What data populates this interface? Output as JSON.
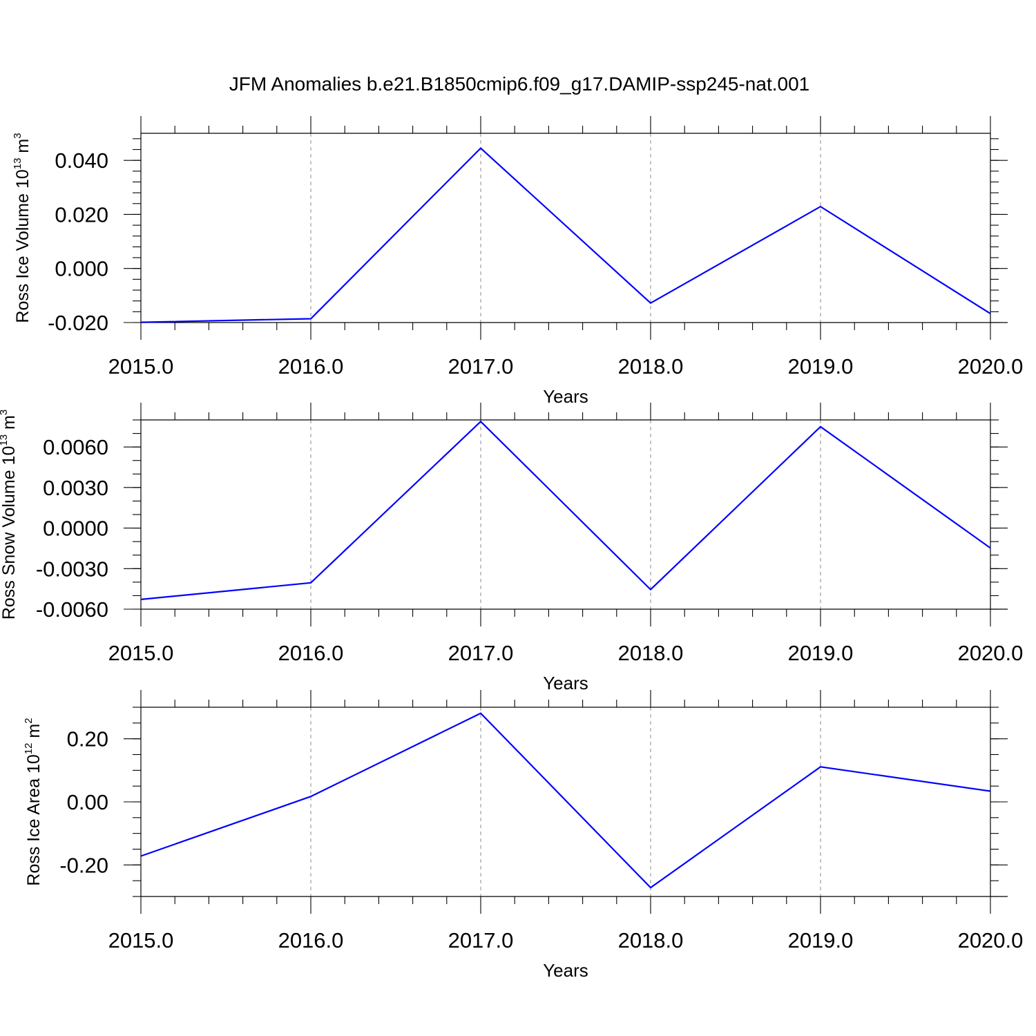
{
  "title": "JFM Anomalies b.e21.B1850cmip6.f09_g17.DAMIP-ssp245-nat.001",
  "colors": {
    "series": "#0000ff",
    "axes": "#000000",
    "grid": "#888888"
  },
  "chart_data": [
    {
      "type": "line",
      "xlabel": "Years",
      "ylabel": {
        "text": "Ross Ice Volume 10",
        "sup": "13",
        "unit": " m",
        "unit_sup": "3"
      },
      "x": [
        2015,
        2016,
        2017,
        2018,
        2019,
        2020
      ],
      "x_tick_labels": [
        "2015.0",
        "2016.0",
        "2017.0",
        "2018.0",
        "2019.0",
        "2020.0"
      ],
      "values": [
        -0.0199,
        -0.0186,
        0.0445,
        -0.0128,
        0.0229,
        -0.0167
      ],
      "y_ticks": [
        -0.02,
        0.0,
        0.02,
        0.04
      ],
      "y_tick_labels": [
        "-0.020",
        "0.000",
        "0.020",
        "0.040"
      ],
      "xlim": [
        2015,
        2020
      ],
      "ylim": [
        -0.02,
        0.05
      ],
      "y_minor_step": 0.004,
      "grid": "vertical dashed"
    },
    {
      "type": "line",
      "xlabel": "Years",
      "ylabel": {
        "text": "Ross Snow Volume 10",
        "sup": "13",
        "unit": " m",
        "unit_sup": "3"
      },
      "x": [
        2015,
        2016,
        2017,
        2018,
        2019,
        2020
      ],
      "x_tick_labels": [
        "2015.0",
        "2016.0",
        "2017.0",
        "2018.0",
        "2019.0",
        "2020.0"
      ],
      "values": [
        -0.00528,
        -0.00405,
        0.00788,
        -0.00455,
        0.0075,
        -0.00148
      ],
      "y_ticks": [
        -0.006,
        -0.003,
        0.0,
        0.003,
        0.006
      ],
      "y_tick_labels": [
        "-0.0060",
        "-0.0030",
        "0.0000",
        "0.0030",
        "0.0060"
      ],
      "xlim": [
        2015,
        2020
      ],
      "ylim": [
        -0.006,
        0.008
      ],
      "y_minor_step": 0.001,
      "grid": "vertical dashed"
    },
    {
      "type": "line",
      "xlabel": "Years",
      "ylabel": {
        "text": "Ross Ice Area 10",
        "sup": "12",
        "unit": " m",
        "unit_sup": "2"
      },
      "x": [
        2015,
        2016,
        2017,
        2018,
        2019,
        2020
      ],
      "x_tick_labels": [
        "2015.0",
        "2016.0",
        "2017.0",
        "2018.0",
        "2019.0",
        "2020.0"
      ],
      "values": [
        -0.172,
        0.017,
        0.281,
        -0.272,
        0.111,
        0.034
      ],
      "y_ticks": [
        -0.2,
        0.0,
        0.2
      ],
      "y_tick_labels": [
        "-0.20",
        "0.00",
        "0.20"
      ],
      "xlim": [
        2015,
        2020
      ],
      "ylim": [
        -0.3,
        0.3
      ],
      "y_minor_step": 0.05,
      "grid": "vertical dashed"
    }
  ]
}
